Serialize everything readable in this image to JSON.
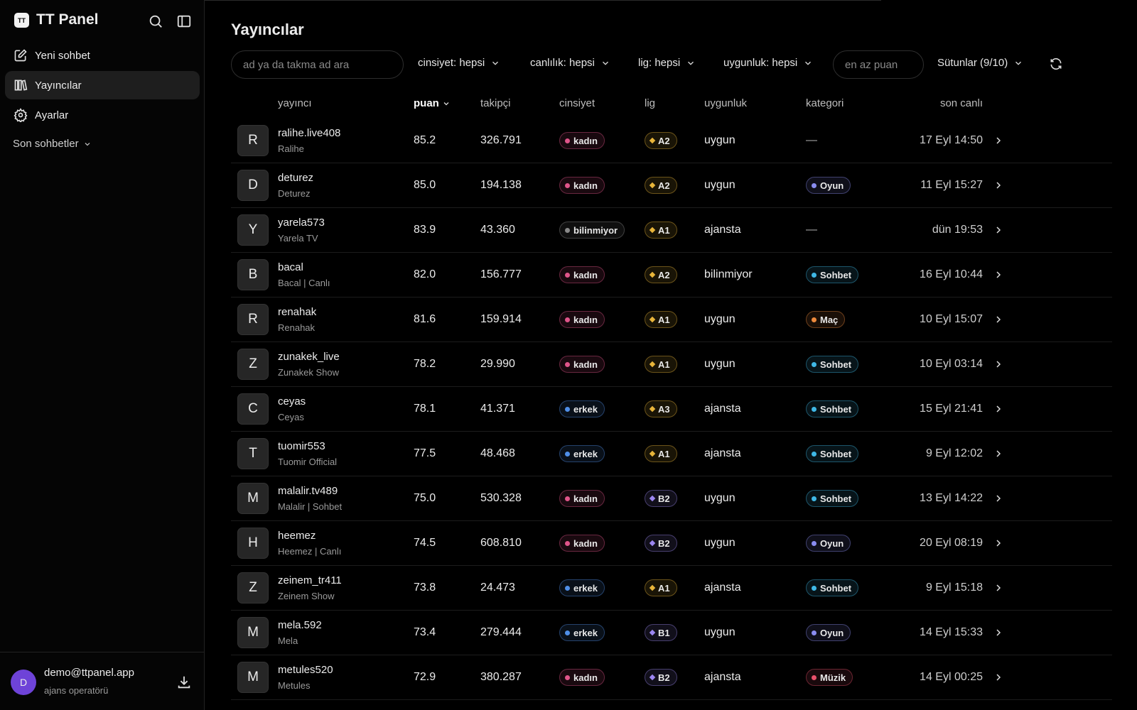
{
  "sidebar": {
    "brand_icon": "TT",
    "brand": "TT Panel",
    "nav": [
      "Yeni sohbet",
      "Yayıncılar",
      "Ayarlar"
    ],
    "recent": "Son sohbetler",
    "user": {
      "avatar": "D",
      "email": "demo@ttpanel.app",
      "role": "ajans operatörü"
    }
  },
  "header": {
    "title": "Yayıncılar"
  },
  "filters": {
    "search_placeholder": "ad ya da takma ad ara",
    "gender": "cinsiyet: hepsi",
    "liveness": "canlılık: hepsi",
    "league": "lig: hepsi",
    "eligibility": "uygunluk: hepsi",
    "min_score_placeholder": "en az puan",
    "columns": "Sütunlar (9/10)"
  },
  "table": {
    "columns": [
      "yayıncı",
      "puan",
      "takipçi",
      "cinsiyet",
      "lig",
      "uygunluk",
      "kategori",
      "son canlı"
    ],
    "rows": [
      {
        "avatar": "R",
        "handle": "ralihe.live408",
        "name": "Ralihe",
        "score": "85.2",
        "followers": "326.791",
        "gender": {
          "label": "kadın",
          "color": "#e0558a"
        },
        "league": {
          "label": "A2",
          "color": "#e8b53a"
        },
        "eligibility": "uygun",
        "category": "—",
        "last_live": "17 Eyl 14:50"
      },
      {
        "avatar": "D",
        "handle": "deturez",
        "name": "Deturez",
        "score": "85.0",
        "followers": "194.138",
        "gender": {
          "label": "kadın",
          "color": "#e0558a"
        },
        "league": {
          "label": "A2",
          "color": "#e8b53a"
        },
        "eligibility": "uygun",
        "category": {
          "label": "Oyun",
          "color": "#8a8cf0"
        },
        "last_live": "11 Eyl 15:27"
      },
      {
        "avatar": "Y",
        "handle": "yarela573",
        "name": "Yarela TV",
        "score": "83.9",
        "followers": "43.360",
        "gender": {
          "label": "bilinmiyor",
          "color": "#8a8a8a"
        },
        "league": {
          "label": "A1",
          "color": "#e8b53a"
        },
        "eligibility": "ajansta",
        "category": "—",
        "last_live": "dün 19:53"
      },
      {
        "avatar": "B",
        "handle": "bacal",
        "name": "Bacal | Canlı",
        "score": "82.0",
        "followers": "156.777",
        "gender": {
          "label": "kadın",
          "color": "#e0558a"
        },
        "league": {
          "label": "A2",
          "color": "#e8b53a"
        },
        "eligibility": "bilinmiyor",
        "category": {
          "label": "Sohbet",
          "color": "#3fb8e6"
        },
        "last_live": "16 Eyl 10:44"
      },
      {
        "avatar": "R",
        "handle": "renahak",
        "name": "Renahak",
        "score": "81.6",
        "followers": "159.914",
        "gender": {
          "label": "kadın",
          "color": "#e0558a"
        },
        "league": {
          "label": "A1",
          "color": "#e8b53a"
        },
        "eligibility": "uygun",
        "category": {
          "label": "Maç",
          "color": "#ee8a3c"
        },
        "last_live": "10 Eyl 15:07"
      },
      {
        "avatar": "Z",
        "handle": "zunakek_live",
        "name": "Zunakek Show",
        "score": "78.2",
        "followers": "29.990",
        "gender": {
          "label": "kadın",
          "color": "#e0558a"
        },
        "league": {
          "label": "A1",
          "color": "#e8b53a"
        },
        "eligibility": "uygun",
        "category": {
          "label": "Sohbet",
          "color": "#3fb8e6"
        },
        "last_live": "10 Eyl 03:14"
      },
      {
        "avatar": "C",
        "handle": "ceyas",
        "name": "Ceyas",
        "score": "78.1",
        "followers": "41.371",
        "gender": {
          "label": "erkek",
          "color": "#4f8fe8"
        },
        "league": {
          "label": "A3",
          "color": "#e8b53a"
        },
        "eligibility": "ajansta",
        "category": {
          "label": "Sohbet",
          "color": "#3fb8e6"
        },
        "last_live": "15 Eyl 21:41"
      },
      {
        "avatar": "T",
        "handle": "tuomir553",
        "name": "Tuomir Official",
        "score": "77.5",
        "followers": "48.468",
        "gender": {
          "label": "erkek",
          "color": "#4f8fe8"
        },
        "league": {
          "label": "A1",
          "color": "#e8b53a"
        },
        "eligibility": "ajansta",
        "category": {
          "label": "Sohbet",
          "color": "#3fb8e6"
        },
        "last_live": "9 Eyl 12:02"
      },
      {
        "avatar": "M",
        "handle": "malalir.tv489",
        "name": "Malalir | Sohbet",
        "score": "75.0",
        "followers": "530.328",
        "gender": {
          "label": "kadın",
          "color": "#e0558a"
        },
        "league": {
          "label": "B2",
          "color": "#9c86f0"
        },
        "eligibility": "uygun",
        "category": {
          "label": "Sohbet",
          "color": "#3fb8e6"
        },
        "last_live": "13 Eyl 14:22"
      },
      {
        "avatar": "H",
        "handle": "heemez",
        "name": "Heemez | Canlı",
        "score": "74.5",
        "followers": "608.810",
        "gender": {
          "label": "kadın",
          "color": "#e0558a"
        },
        "league": {
          "label": "B2",
          "color": "#9c86f0"
        },
        "eligibility": "uygun",
        "category": {
          "label": "Oyun",
          "color": "#8a8cf0"
        },
        "last_live": "20 Eyl 08:19"
      },
      {
        "avatar": "Z",
        "handle": "zeinem_tr411",
        "name": "Zeinem Show",
        "score": "73.8",
        "followers": "24.473",
        "gender": {
          "label": "erkek",
          "color": "#4f8fe8"
        },
        "league": {
          "label": "A1",
          "color": "#e8b53a"
        },
        "eligibility": "ajansta",
        "category": {
          "label": "Sohbet",
          "color": "#3fb8e6"
        },
        "last_live": "9 Eyl 15:18"
      },
      {
        "avatar": "M",
        "handle": "mela.592",
        "name": "Mela",
        "score": "73.4",
        "followers": "279.444",
        "gender": {
          "label": "erkek",
          "color": "#4f8fe8"
        },
        "league": {
          "label": "B1",
          "color": "#9c86f0"
        },
        "eligibility": "uygun",
        "category": {
          "label": "Oyun",
          "color": "#8a8cf0"
        },
        "last_live": "14 Eyl 15:33"
      },
      {
        "avatar": "M",
        "handle": "metules520",
        "name": "Metules",
        "score": "72.9",
        "followers": "380.287",
        "gender": {
          "label": "kadın",
          "color": "#e0558a"
        },
        "league": {
          "label": "B2",
          "color": "#9c86f0"
        },
        "eligibility": "ajansta",
        "category": {
          "label": "Müzik",
          "color": "#e8506a"
        },
        "last_live": "14 Eyl 00:25"
      }
    ]
  }
}
